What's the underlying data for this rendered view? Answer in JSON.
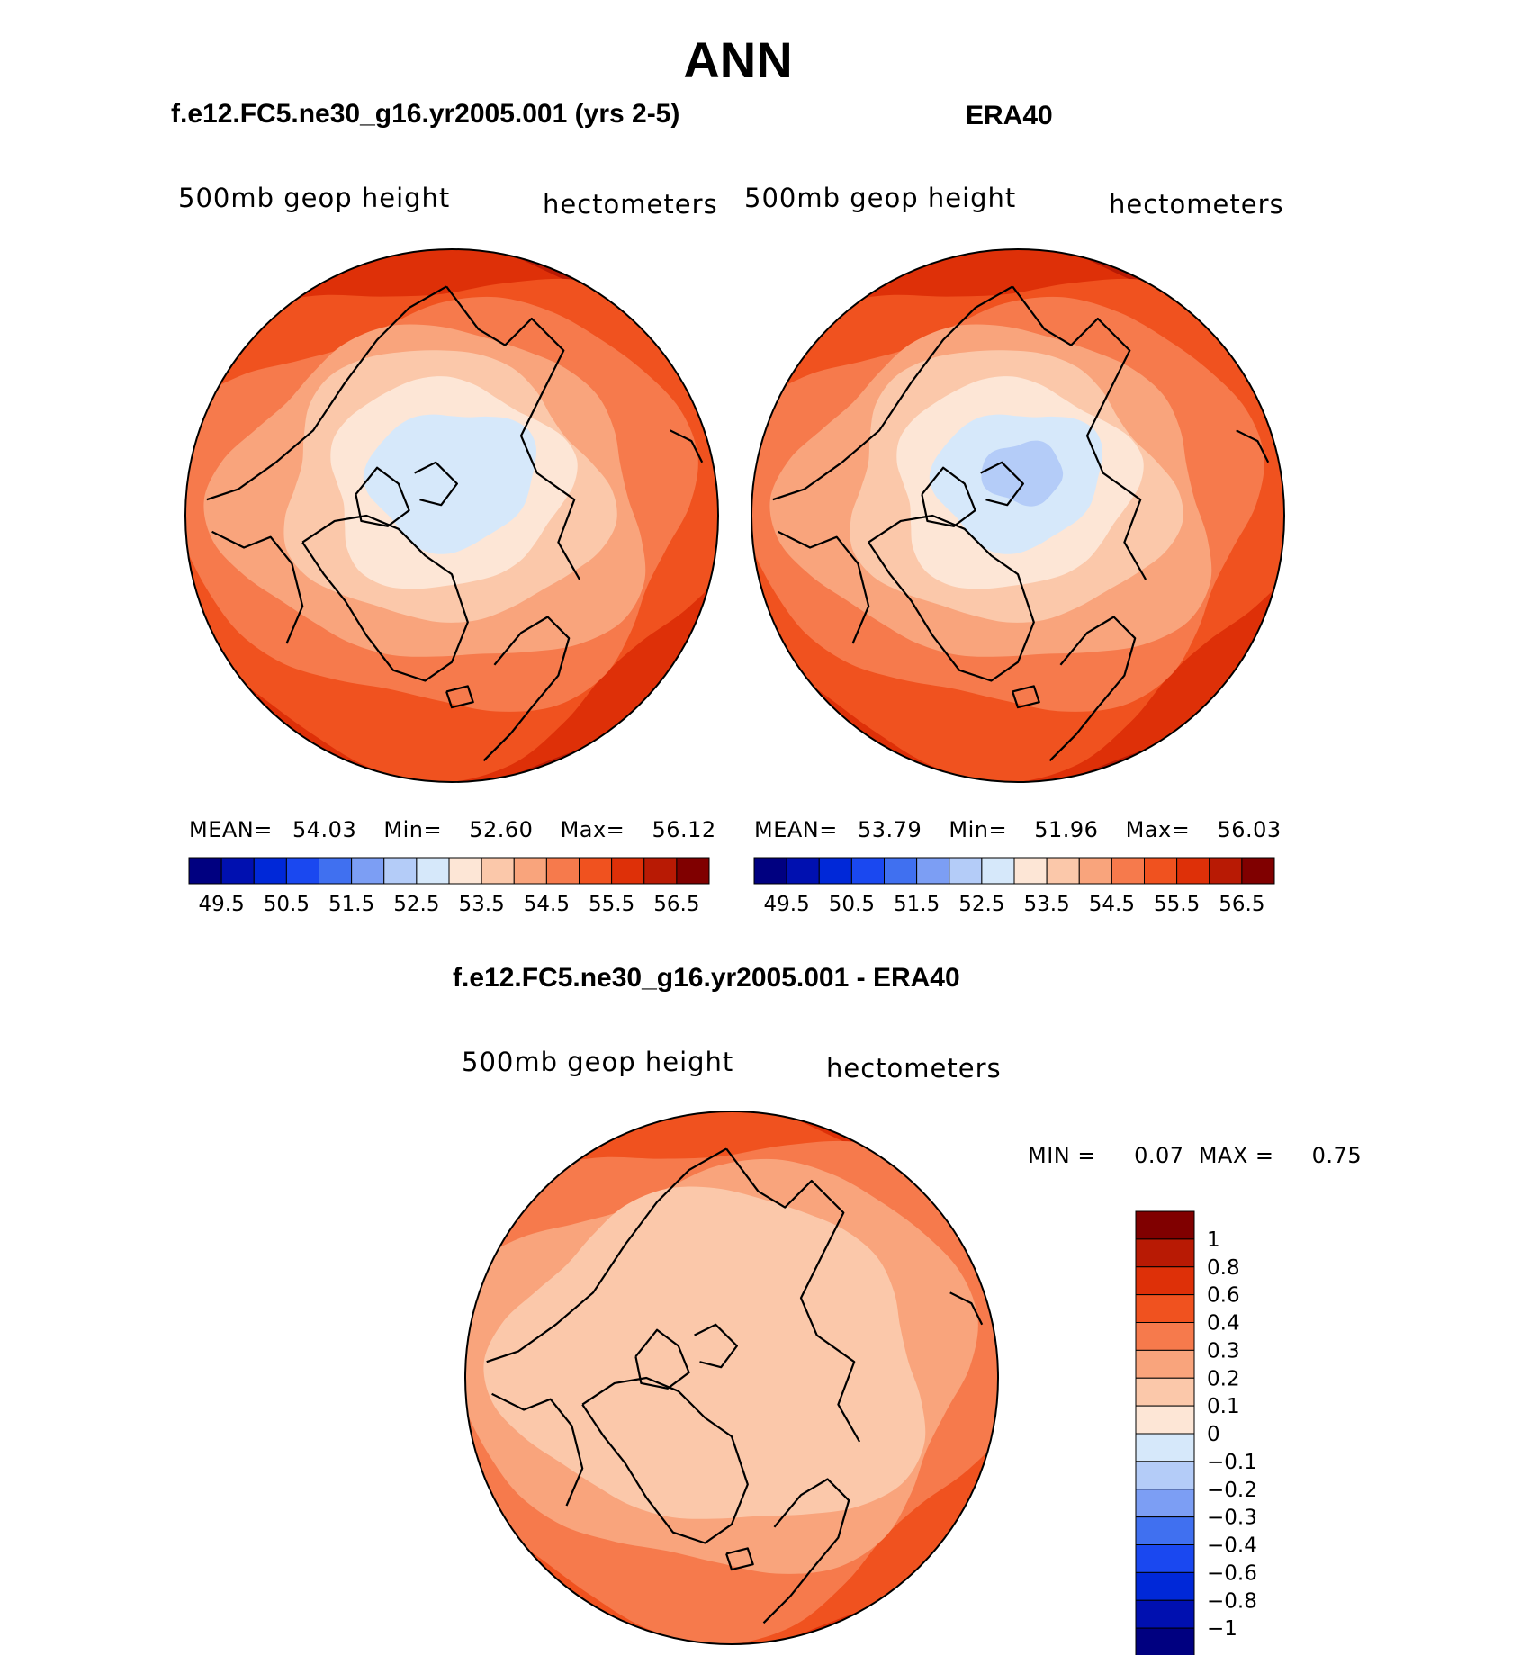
{
  "figure": {
    "title": "ANN"
  },
  "panels": {
    "model": {
      "title": "f.e12.FC5.ne30_g16.yr2005.001 (yrs 2-5)",
      "variable": "500mb  geop  height",
      "units": "hectometers",
      "stats": {
        "mean_label": "MEAN=",
        "mean": "54.03",
        "min_label": "Min=",
        "min": "52.60",
        "max_label": "Max=",
        "max": "56.12"
      }
    },
    "obs": {
      "title": "ERA40",
      "variable": "500mb  geop  height",
      "units": "hectometers",
      "stats": {
        "mean_label": "MEAN=",
        "mean": "53.79",
        "min_label": "Min=",
        "min": "51.96",
        "max_label": "Max=",
        "max": "56.03"
      }
    },
    "diff": {
      "title": "f.e12.FC5.ne30_g16.yr2005.001 - ERA40",
      "variable": "500mb  geop  height",
      "units": "hectometers",
      "stats": {
        "min_label": "MIN =",
        "min": "0.07",
        "max_label": "MAX =",
        "max": "0.75"
      }
    }
  },
  "chart_data": [
    {
      "type": "heatmap",
      "projection": "north-polar-stereographic",
      "title": "f.e12.FC5.ne30_g16.yr2005.001 (yrs 2-5)",
      "variable": "500mb geop height",
      "units": "hectometers",
      "mean": 54.03,
      "min": 52.6,
      "max": 56.12,
      "colorbar_levels": [
        49.5,
        50,
        50.5,
        51,
        51.5,
        52,
        52.5,
        53,
        53.5,
        54,
        54.5,
        55,
        55.5,
        56,
        56.5
      ],
      "colorbar_tick_labels": [
        "49.5",
        "50.5",
        "51.5",
        "52.5",
        "53.5",
        "54.5",
        "55.5",
        "56.5"
      ],
      "contour_bands": [
        52.5,
        53,
        53.5,
        54,
        54.5,
        55,
        55.5,
        56
      ]
    },
    {
      "type": "heatmap",
      "projection": "north-polar-stereographic",
      "title": "ERA40",
      "variable": "500mb geop height",
      "units": "hectometers",
      "mean": 53.79,
      "min": 51.96,
      "max": 56.03,
      "colorbar_levels": [
        49.5,
        50,
        50.5,
        51,
        51.5,
        52,
        52.5,
        53,
        53.5,
        54,
        54.5,
        55,
        55.5,
        56,
        56.5
      ],
      "colorbar_tick_labels": [
        "49.5",
        "50.5",
        "51.5",
        "52.5",
        "53.5",
        "54.5",
        "55.5",
        "56.5"
      ],
      "contour_bands": [
        52,
        52.5,
        53,
        53.5,
        54,
        54.5,
        55,
        55.5,
        56
      ]
    },
    {
      "type": "heatmap",
      "projection": "north-polar-stereographic",
      "title": "f.e12.FC5.ne30_g16.yr2005.001 - ERA40",
      "variable": "500mb geop height",
      "units": "hectometers",
      "min": 0.07,
      "max": 0.75,
      "colorbar_levels": [
        -1,
        -0.8,
        -0.6,
        -0.4,
        -0.3,
        -0.2,
        -0.1,
        0,
        0.1,
        0.2,
        0.3,
        0.4,
        0.6,
        0.8,
        1
      ],
      "colorbar_tick_labels": [
        "1",
        "0.8",
        "0.6",
        "0.4",
        "0.3",
        "0.2",
        "0.1",
        "0",
        "−0.1",
        "−0.2",
        "−0.3",
        "−0.4",
        "−0.6",
        "−0.8",
        "−1"
      ],
      "contour_bands": [
        0.1,
        0.2,
        0.3,
        0.4,
        0.6
      ]
    }
  ],
  "colors": {
    "abs_palette": [
      "#000080",
      "#0010b0",
      "#0028d8",
      "#1a48f0",
      "#4070f0",
      "#7c9ef4",
      "#b4ccf8",
      "#d6e8fa",
      "#fde6d6",
      "#fbc8aa",
      "#f9a47c",
      "#f67a4c",
      "#f0521f",
      "#de3008",
      "#b81a04",
      "#800000"
    ],
    "diff_palette": [
      "#800000",
      "#b81a04",
      "#de3008",
      "#f0521f",
      "#f67a4c",
      "#f9a47c",
      "#fbc8aa",
      "#fde6d6",
      "#d6e8fa",
      "#b4ccf8",
      "#7c9ef4",
      "#4070f0",
      "#1a48f0",
      "#0028d8",
      "#0010b0",
      "#000080"
    ]
  }
}
